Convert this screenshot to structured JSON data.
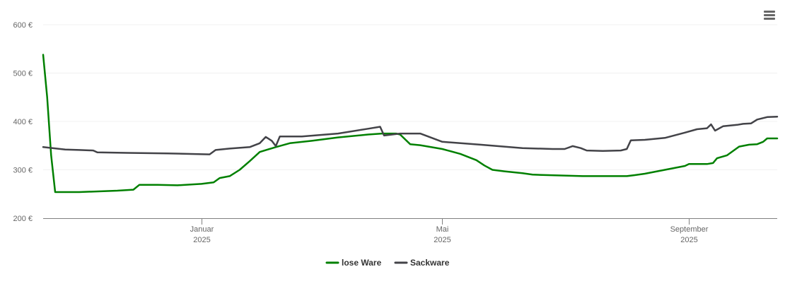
{
  "chart_data": {
    "type": "line",
    "y_unit_suffix": " €",
    "ylim": [
      200,
      600
    ],
    "yticks": [
      200,
      300,
      400,
      500,
      600
    ],
    "ytick_labels": [
      "200 €",
      "300 €",
      "400 €",
      "500 €",
      "600 €"
    ],
    "xlim": [
      "2024-10-14",
      "2025-10-15"
    ],
    "xticks": [
      {
        "date": "2025-01-01",
        "month": "Januar",
        "year": "2025"
      },
      {
        "date": "2025-05-01",
        "month": "Mai",
        "year": "2025"
      },
      {
        "date": "2025-09-01",
        "month": "September",
        "year": "2025"
      }
    ],
    "grid": true,
    "legend_position": "bottom-center",
    "series": [
      {
        "name": "lose Ware",
        "color": "#008000",
        "points": [
          [
            "2024-10-14",
            538
          ],
          [
            "2024-10-16",
            450
          ],
          [
            "2024-10-18",
            330
          ],
          [
            "2024-10-20",
            254
          ],
          [
            "2024-11-01",
            254
          ],
          [
            "2024-11-20",
            257
          ],
          [
            "2024-11-28",
            259
          ],
          [
            "2024-12-01",
            269
          ],
          [
            "2024-12-10",
            269
          ],
          [
            "2024-12-20",
            268
          ],
          [
            "2025-01-01",
            271
          ],
          [
            "2025-01-07",
            274
          ],
          [
            "2025-01-10",
            283
          ],
          [
            "2025-01-15",
            287
          ],
          [
            "2025-01-20",
            300
          ],
          [
            "2025-01-25",
            318
          ],
          [
            "2025-01-30",
            337
          ],
          [
            "2025-02-07",
            347
          ],
          [
            "2025-02-14",
            355
          ],
          [
            "2025-02-25",
            360
          ],
          [
            "2025-03-10",
            367
          ],
          [
            "2025-03-25",
            373
          ],
          [
            "2025-04-01",
            375
          ],
          [
            "2025-04-08",
            375
          ],
          [
            "2025-04-10",
            373
          ],
          [
            "2025-04-15",
            353
          ],
          [
            "2025-04-20",
            351
          ],
          [
            "2025-05-01",
            343
          ],
          [
            "2025-05-10",
            333
          ],
          [
            "2025-05-18",
            320
          ],
          [
            "2025-05-22",
            309
          ],
          [
            "2025-05-26",
            300
          ],
          [
            "2025-06-01",
            297
          ],
          [
            "2025-06-10",
            293
          ],
          [
            "2025-06-15",
            290
          ],
          [
            "2025-07-10",
            287
          ],
          [
            "2025-08-01",
            287
          ],
          [
            "2025-08-05",
            289
          ],
          [
            "2025-08-10",
            292
          ],
          [
            "2025-08-30",
            308
          ],
          [
            "2025-09-01",
            312
          ],
          [
            "2025-09-10",
            312
          ],
          [
            "2025-09-13",
            314
          ],
          [
            "2025-09-15",
            324
          ],
          [
            "2025-09-20",
            330
          ],
          [
            "2025-09-26",
            348
          ],
          [
            "2025-10-01",
            352
          ],
          [
            "2025-10-05",
            353
          ],
          [
            "2025-10-08",
            358
          ],
          [
            "2025-10-10",
            365
          ],
          [
            "2025-10-15",
            365
          ]
        ]
      },
      {
        "name": "Sackware",
        "color": "#434348",
        "points": [
          [
            "2024-10-14",
            347
          ],
          [
            "2024-10-25",
            342
          ],
          [
            "2024-11-01",
            341
          ],
          [
            "2024-11-08",
            340
          ],
          [
            "2024-11-10",
            336
          ],
          [
            "2024-11-25",
            335
          ],
          [
            "2024-12-15",
            334
          ],
          [
            "2025-01-05",
            332
          ],
          [
            "2025-01-08",
            341
          ],
          [
            "2025-01-15",
            344
          ],
          [
            "2025-01-25",
            347
          ],
          [
            "2025-01-30",
            355
          ],
          [
            "2025-02-02",
            368
          ],
          [
            "2025-02-05",
            360
          ],
          [
            "2025-02-07",
            349
          ],
          [
            "2025-02-09",
            369
          ],
          [
            "2025-02-20",
            369
          ],
          [
            "2025-03-10",
            375
          ],
          [
            "2025-03-25",
            385
          ],
          [
            "2025-03-31",
            389
          ],
          [
            "2025-04-02",
            371
          ],
          [
            "2025-04-10",
            375
          ],
          [
            "2025-04-20",
            375
          ],
          [
            "2025-05-01",
            358
          ],
          [
            "2025-05-20",
            352
          ],
          [
            "2025-06-10",
            345
          ],
          [
            "2025-06-25",
            343
          ],
          [
            "2025-07-01",
            343
          ],
          [
            "2025-07-05",
            349
          ],
          [
            "2025-07-09",
            345
          ],
          [
            "2025-07-12",
            340
          ],
          [
            "2025-07-20",
            339
          ],
          [
            "2025-07-29",
            340
          ],
          [
            "2025-08-01",
            343
          ],
          [
            "2025-08-03",
            361
          ],
          [
            "2025-08-10",
            362
          ],
          [
            "2025-08-20",
            366
          ],
          [
            "2025-08-30",
            377
          ],
          [
            "2025-09-05",
            384
          ],
          [
            "2025-09-10",
            386
          ],
          [
            "2025-09-12",
            394
          ],
          [
            "2025-09-14",
            381
          ],
          [
            "2025-09-18",
            390
          ],
          [
            "2025-09-25",
            393
          ],
          [
            "2025-09-28",
            395
          ],
          [
            "2025-10-02",
            396
          ],
          [
            "2025-10-05",
            404
          ],
          [
            "2025-10-10",
            409
          ],
          [
            "2025-10-15",
            410
          ]
        ]
      }
    ]
  },
  "toolbar": {
    "menu_icon": "hamburger-menu-icon"
  }
}
